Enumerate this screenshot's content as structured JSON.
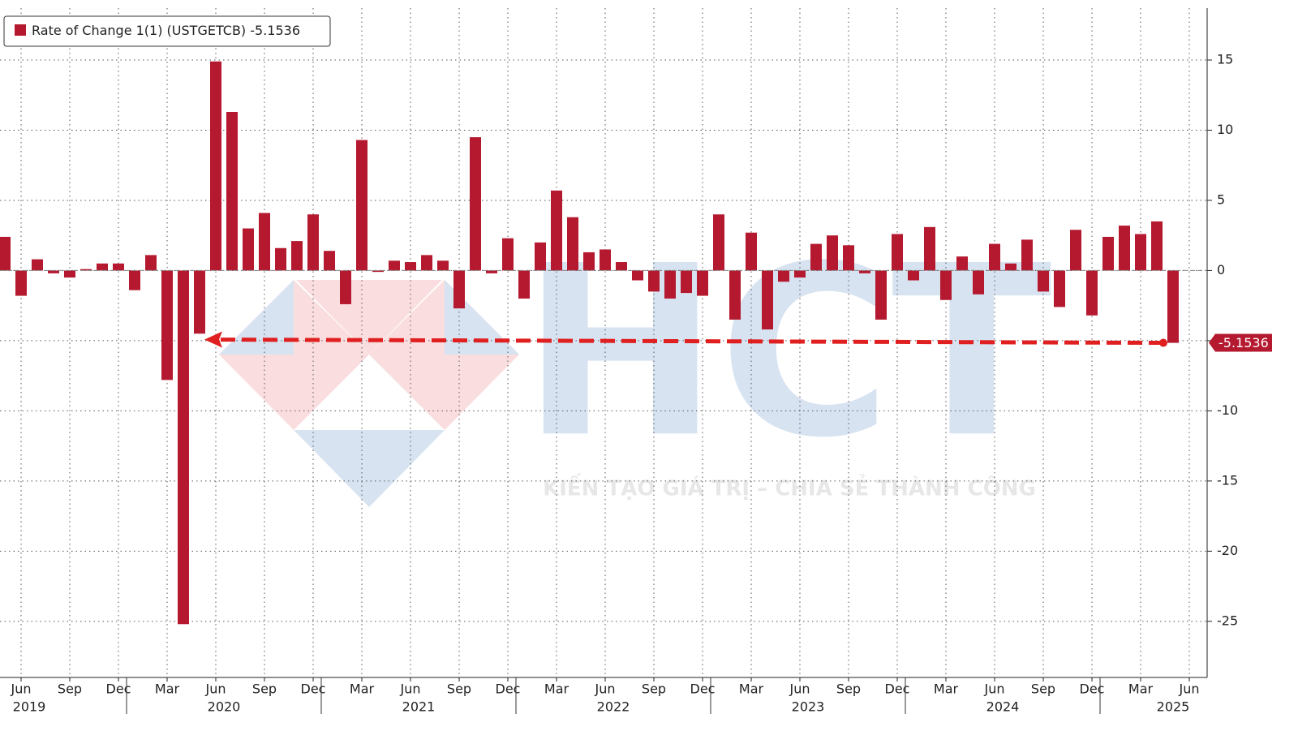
{
  "chart_data": {
    "type": "bar",
    "legend": "bottom-left",
    "series": [
      {
        "name": "Rate of Change 1(1) (USTGETCB)",
        "color": "#b5192f",
        "values": [
          2.4,
          -1.8,
          0.8,
          -0.2,
          -0.5,
          0.1,
          0.5,
          0.5,
          -1.4,
          1.1,
          -7.8,
          -25.2,
          -4.5,
          14.9,
          11.3,
          3.0,
          4.1,
          1.6,
          2.1,
          4.0,
          1.4,
          -2.4,
          9.3,
          -0.1,
          0.7,
          0.6,
          1.1,
          0.7,
          -2.7,
          9.5,
          -0.2,
          2.3,
          -2.0,
          2.0,
          5.7,
          3.8,
          1.3,
          1.5,
          0.6,
          -0.7,
          -1.5,
          -2.0,
          -1.6,
          -1.8,
          4.0,
          -3.5,
          2.7,
          -4.2,
          -0.8,
          -0.5,
          1.9,
          2.5,
          1.8,
          -0.2,
          -3.5,
          2.6,
          -0.7,
          3.1,
          -2.1,
          1.0,
          -1.7,
          1.9,
          0.5,
          2.2,
          -1.5,
          -2.6,
          2.9,
          -3.2,
          2.4,
          3.2,
          2.6,
          3.5,
          -5.1536
        ]
      }
    ],
    "x": [
      "2019-05",
      "2019-06",
      "2019-07",
      "2019-08",
      "2019-09",
      "2019-10",
      "2019-11",
      "2019-12",
      "2020-01",
      "2020-02",
      "2020-03",
      "2020-04",
      "2020-05",
      "2020-06",
      "2020-07",
      "2020-08",
      "2020-09",
      "2020-10",
      "2020-11",
      "2020-12",
      "2021-01",
      "2021-02",
      "2021-03",
      "2021-04",
      "2021-05",
      "2021-06",
      "2021-07",
      "2021-08",
      "2021-09",
      "2021-10",
      "2021-11",
      "2021-12",
      "2022-01",
      "2022-02",
      "2022-03",
      "2022-04",
      "2022-05",
      "2022-06",
      "2022-07",
      "2022-08",
      "2022-09",
      "2022-10",
      "2022-11",
      "2022-12",
      "2023-01",
      "2023-02",
      "2023-03",
      "2023-04",
      "2023-05",
      "2023-06",
      "2023-07",
      "2023-08",
      "2023-09",
      "2023-10",
      "2023-11",
      "2023-12",
      "2024-01",
      "2024-02",
      "2024-03",
      "2024-04",
      "2024-05",
      "2024-06",
      "2024-07",
      "2024-08",
      "2024-09",
      "2024-10",
      "2024-11",
      "2024-12",
      "2025-01",
      "2025-02",
      "2025-03",
      "2025-04",
      "2025-05"
    ],
    "xlim": [
      "2019-05",
      "2025-07"
    ],
    "xticks": [
      {
        "value": "2019-06",
        "label": "Jun"
      },
      {
        "value": "2019-09",
        "label": "Sep"
      },
      {
        "value": "2019-12",
        "label": "Dec"
      },
      {
        "value": "2020-03",
        "label": "Mar"
      },
      {
        "value": "2020-06",
        "label": "Jun"
      },
      {
        "value": "2020-09",
        "label": "Sep"
      },
      {
        "value": "2020-12",
        "label": "Dec"
      },
      {
        "value": "2021-03",
        "label": "Mar"
      },
      {
        "value": "2021-06",
        "label": "Jun"
      },
      {
        "value": "2021-09",
        "label": "Sep"
      },
      {
        "value": "2021-12",
        "label": "Dec"
      },
      {
        "value": "2022-03",
        "label": "Mar"
      },
      {
        "value": "2022-06",
        "label": "Jun"
      },
      {
        "value": "2022-09",
        "label": "Sep"
      },
      {
        "value": "2022-12",
        "label": "Dec"
      },
      {
        "value": "2023-03",
        "label": "Mar"
      },
      {
        "value": "2023-06",
        "label": "Jun"
      },
      {
        "value": "2023-09",
        "label": "Sep"
      },
      {
        "value": "2023-12",
        "label": "Dec"
      },
      {
        "value": "2024-03",
        "label": "Mar"
      },
      {
        "value": "2024-06",
        "label": "Jun"
      },
      {
        "value": "2024-09",
        "label": "Sep"
      },
      {
        "value": "2024-12",
        "label": "Dec"
      },
      {
        "value": "2025-03",
        "label": "Mar"
      },
      {
        "value": "2025-06",
        "label": "Jun"
      }
    ],
    "year_labels": [
      "2019",
      "2020",
      "2021",
      "2022",
      "2023",
      "2024",
      "2025"
    ],
    "ylim": [
      -29,
      18.7
    ],
    "yticks": [
      15,
      10,
      5,
      0,
      -5,
      -10,
      -15,
      -20,
      -25
    ],
    "grid": true,
    "watermark": {
      "logo": "HCT",
      "slogan": "KIẾN TẠO GIÁ TRỊ – CHIA SẺ THÀNH CÔNG"
    }
  }
}
